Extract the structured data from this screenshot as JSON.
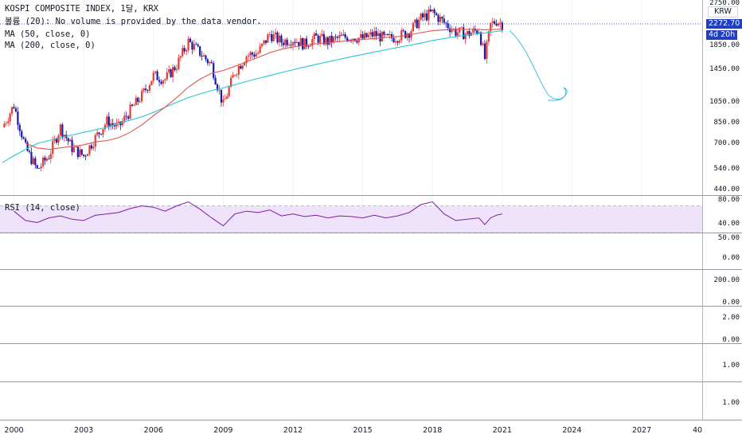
{
  "header": {
    "symbol_line": "KOSPI COMPOSITE INDEX, 1달, KRX",
    "volume_line": "볼륨 (20): No volume is provided by the data vendor.",
    "ma50_label": "MA (50, close, 0)",
    "ma200_label": "MA (200, close, 0)",
    "rsi_label": "RSI (14, close)"
  },
  "price_scale": {
    "currency": "KRW",
    "ticks": [
      "2750.00",
      "1850.00",
      "1450.00",
      "1050.00",
      "850.00",
      "700.00",
      "540.00",
      "440.00"
    ],
    "last_price": "2272.70",
    "countdown": "4d 20h"
  },
  "rsi_scale": {
    "ticks": [
      "80.00",
      "40.00"
    ]
  },
  "extra_panes": [
    {
      "name": "pane-3",
      "ticks": [
        "50.00",
        "0.00"
      ]
    },
    {
      "name": "pane-4",
      "ticks": [
        "200.00",
        "0.00"
      ]
    },
    {
      "name": "pane-5",
      "ticks": [
        "2.00",
        "0.00"
      ]
    },
    {
      "name": "pane-6",
      "ticks": [
        "1.00"
      ]
    },
    {
      "name": "pane-7",
      "ticks": [
        "1.00"
      ]
    }
  ],
  "x_axis": {
    "labels": [
      "2000",
      "2003",
      "2006",
      "2009",
      "2012",
      "2015",
      "2018",
      "2021",
      "2024",
      "2027",
      "40"
    ]
  },
  "colors": {
    "up": "#e53935",
    "down": "#1a1aa8",
    "ma50": "#e0554b",
    "ma200": "#26c6da",
    "rsi_line": "#7b1fa2",
    "rsi_band": "#efe2fb",
    "last_price_badge": "#1f3fc4",
    "annotation": "#3fc1d9"
  },
  "chart_data": {
    "type": "line",
    "title": "KOSPI COMPOSITE INDEX, 1달, KRX",
    "x": [
      1999.5,
      2000.0,
      2000.5,
      2001.0,
      2001.5,
      2002.0,
      2002.5,
      2003.0,
      2003.5,
      2004.0,
      2004.5,
      2005.0,
      2005.5,
      2006.0,
      2006.5,
      2007.0,
      2007.5,
      2008.0,
      2008.5,
      2009.0,
      2009.5,
      2010.0,
      2010.5,
      2011.0,
      2011.5,
      2012.0,
      2012.5,
      2013.0,
      2013.5,
      2014.0,
      2014.5,
      2015.0,
      2015.5,
      2016.0,
      2016.5,
      2017.0,
      2017.5,
      2018.0,
      2018.5,
      2019.0,
      2019.5,
      2020.0,
      2020.25,
      2020.5,
      2020.75,
      2021.0
    ],
    "series": [
      {
        "name": "KOSPI",
        "values": [
          800,
          1000,
          650,
          520,
          600,
          800,
          650,
          600,
          720,
          850,
          800,
          950,
          1100,
          1350,
          1300,
          1500,
          1900,
          1700,
          1500,
          1000,
          1400,
          1650,
          1700,
          2050,
          1900,
          1950,
          1850,
          1980,
          1900,
          1970,
          2000,
          1960,
          2050,
          1950,
          2000,
          2100,
          2400,
          2550,
          2300,
          2100,
          2050,
          2150,
          1600,
          2250,
          2350,
          2272.7
        ]
      },
      {
        "name": "MA (50, close, 0)",
        "values": [
          null,
          null,
          680,
          650,
          640,
          650,
          660,
          670,
          690,
          700,
          720,
          760,
          820,
          900,
          980,
          1080,
          1200,
          1300,
          1380,
          1420,
          1480,
          1550,
          1620,
          1700,
          1760,
          1800,
          1830,
          1860,
          1880,
          1900,
          1920,
          1940,
          1960,
          1980,
          2000,
          2030,
          2080,
          2120,
          2140,
          2150,
          2150,
          2150,
          2140,
          2145,
          2150,
          2155
        ]
      },
      {
        "name": "MA (200, close, 0)",
        "values": [
          560,
          600,
          640,
          680,
          700,
          720,
          740,
          760,
          780,
          800,
          830,
          860,
          890,
          930,
          980,
          1030,
          1080,
          1120,
          1160,
          1190,
          1230,
          1270,
          1310,
          1350,
          1390,
          1430,
          1470,
          1510,
          1550,
          1590,
          1630,
          1670,
          1710,
          1750,
          1790,
          1830,
          1870,
          1920,
          1960,
          2000,
          2030,
          2060,
          2075,
          2090,
          2105,
          2120
        ]
      },
      {
        "name": "RSI (14, close)",
        "values": [
          null,
          62,
          48,
          45,
          52,
          55,
          50,
          48,
          56,
          58,
          60,
          66,
          70,
          68,
          62,
          70,
          76,
          65,
          52,
          40,
          58,
          62,
          60,
          64,
          55,
          58,
          54,
          56,
          52,
          55,
          54,
          52,
          56,
          52,
          55,
          60,
          72,
          76,
          58,
          48,
          50,
          52,
          42,
          52,
          56,
          58
        ]
      }
    ],
    "ylim": [
      420,
      2800
    ],
    "y_scale": "log",
    "rsi_ylim": [
      30,
      85
    ],
    "xlim": [
      1999.4,
      2029.6
    ],
    "grid": true
  }
}
